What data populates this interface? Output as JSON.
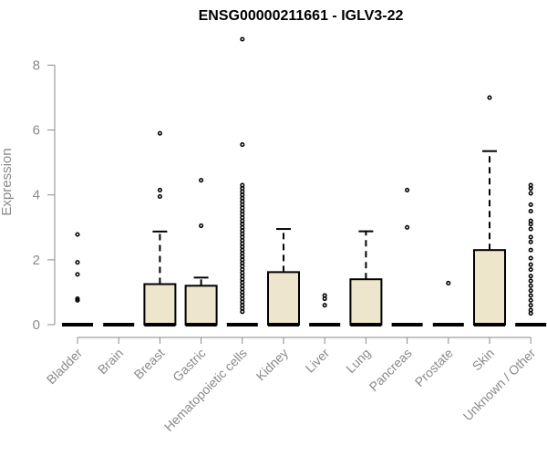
{
  "chart_data": {
    "type": "boxplot",
    "title": "ENSG00000211661 - IGLV3-22",
    "ylabel": "Expression",
    "xlabel": "",
    "ylim": [
      0,
      8
    ],
    "yticks": [
      0,
      2,
      4,
      6,
      8
    ],
    "box_fill": "#ede6cc",
    "categories": [
      "Bladder",
      "Brain",
      "Breast",
      "Gastric",
      "Hematopoietic cells",
      "Kidney",
      "Liver",
      "Lung",
      "Pancreas",
      "Prostate",
      "Skin",
      "Unknown / Other"
    ],
    "boxes": [
      {
        "q1": 0,
        "median": 0,
        "q3": 0,
        "whisker_low": 0,
        "whisker_high": 0,
        "outliers": [
          2.78,
          1.92,
          1.55,
          0.8,
          0.75
        ]
      },
      {
        "q1": 0,
        "median": 0,
        "q3": 0,
        "whisker_low": 0,
        "whisker_high": 0,
        "outliers": []
      },
      {
        "q1": 0,
        "median": 0,
        "q3": 1.25,
        "whisker_low": 0,
        "whisker_high": 2.87,
        "outliers": [
          5.9,
          4.15,
          3.95
        ]
      },
      {
        "q1": 0,
        "median": 0,
        "q3": 1.2,
        "whisker_low": 0,
        "whisker_high": 1.45,
        "outliers": [
          4.45,
          3.05
        ]
      },
      {
        "q1": 0,
        "median": 0,
        "q3": 0,
        "whisker_low": 0,
        "whisker_high": 0,
        "outliers": [
          8.8,
          5.55,
          4.3,
          4.2,
          4.1,
          4.0,
          3.9,
          3.8,
          3.7,
          3.6,
          3.5,
          3.4,
          3.3,
          3.2,
          3.1,
          3.0,
          2.9,
          2.8,
          2.7,
          2.6,
          2.5,
          2.4,
          2.3,
          2.2,
          2.1,
          2.0,
          1.9,
          1.8,
          1.7,
          1.6,
          1.5,
          1.4,
          1.3,
          1.2,
          1.1,
          1.0,
          0.9,
          0.8,
          0.7,
          0.6,
          0.5,
          0.4
        ]
      },
      {
        "q1": 0,
        "median": 0,
        "q3": 1.62,
        "whisker_low": 0,
        "whisker_high": 2.95,
        "outliers": []
      },
      {
        "q1": 0,
        "median": 0,
        "q3": 0,
        "whisker_low": 0,
        "whisker_high": 0,
        "outliers": [
          0.9,
          0.8,
          0.6
        ]
      },
      {
        "q1": 0,
        "median": 0,
        "q3": 1.4,
        "whisker_low": 0,
        "whisker_high": 2.88,
        "outliers": []
      },
      {
        "q1": 0,
        "median": 0,
        "q3": 0,
        "whisker_low": 0,
        "whisker_high": 0,
        "outliers": [
          4.15,
          3.0
        ]
      },
      {
        "q1": 0,
        "median": 0,
        "q3": 0,
        "whisker_low": 0,
        "whisker_high": 0,
        "outliers": [
          1.28
        ]
      },
      {
        "q1": 0,
        "median": 0,
        "q3": 2.3,
        "whisker_low": 0,
        "whisker_high": 5.35,
        "outliers": [
          7.0
        ]
      },
      {
        "q1": 0,
        "median": 0,
        "q3": 0,
        "whisker_low": 0,
        "whisker_high": 0,
        "outliers": [
          4.3,
          4.2,
          4.05,
          3.7,
          3.5,
          3.2,
          3.1,
          2.95,
          2.7,
          2.55,
          2.3,
          2.05,
          1.85,
          1.7,
          1.5,
          1.35,
          1.2,
          1.05,
          0.9,
          0.75,
          0.6,
          0.45,
          0.35
        ]
      }
    ]
  }
}
